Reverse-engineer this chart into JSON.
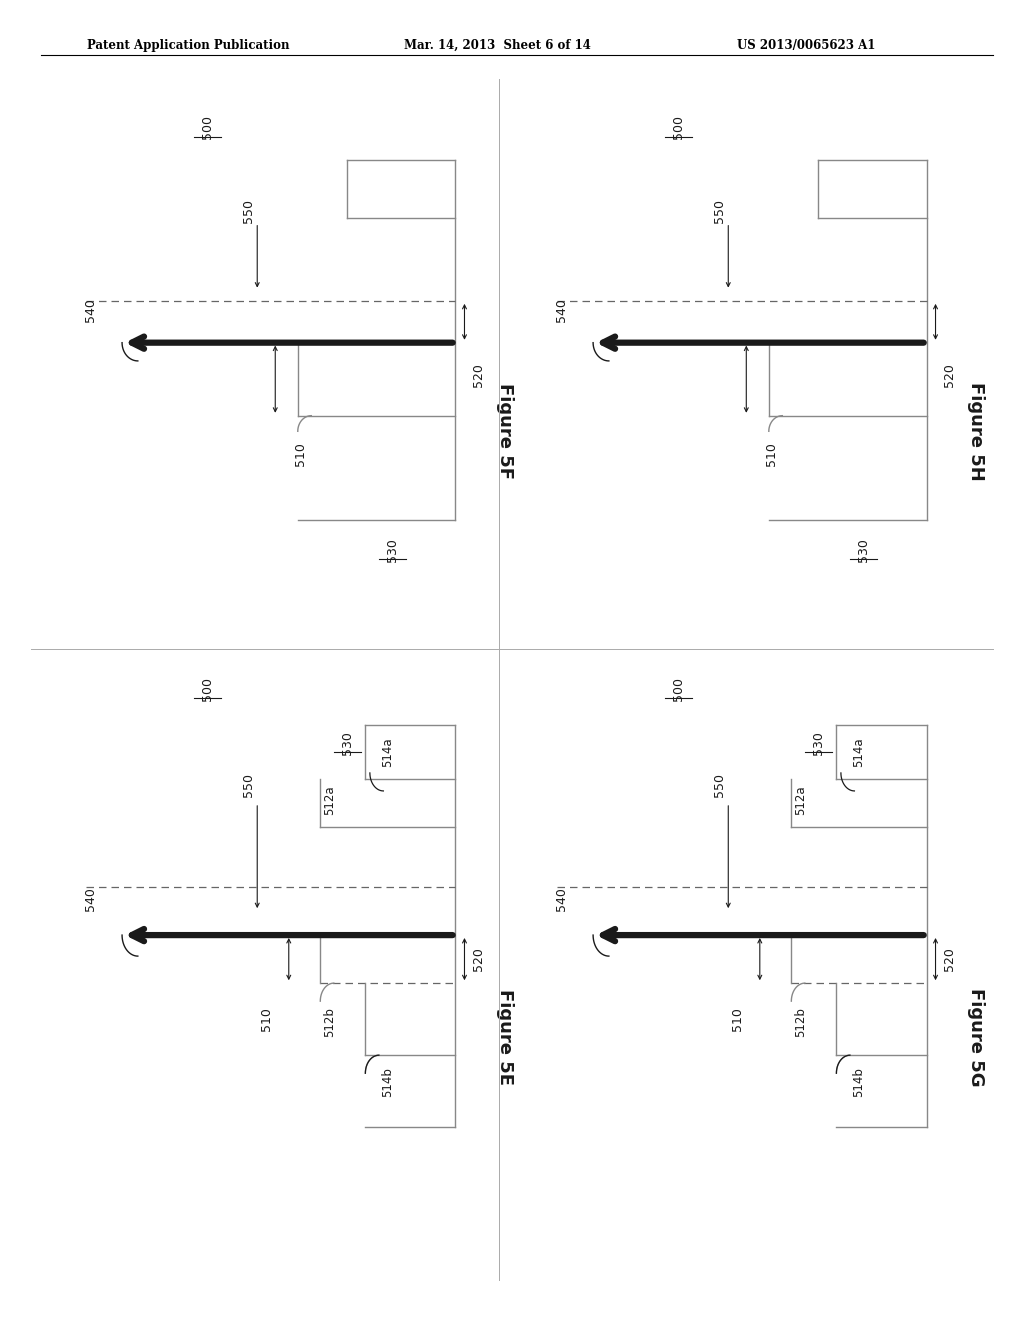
{
  "header_left": "Patent Application Publication",
  "header_mid": "Mar. 14, 2013  Sheet 6 of 14",
  "header_right": "US 2013/0065623 A1",
  "bg_color": "#ffffff",
  "line_color": "#1a1a1a",
  "gray_color": "#888888",
  "dash_color": "#666666"
}
